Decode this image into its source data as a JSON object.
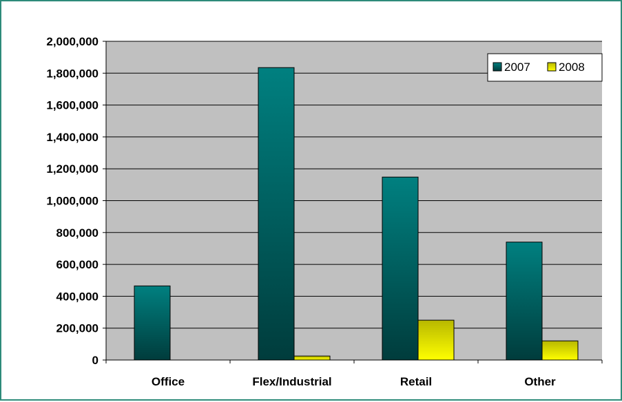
{
  "chart_data": {
    "type": "bar",
    "categories": [
      "Office",
      "Flex/Industrial",
      "Retail",
      "Other"
    ],
    "series": [
      {
        "name": "2007",
        "values": [
          465000,
          1835000,
          1148000,
          740000
        ]
      },
      {
        "name": "2008",
        "values": [
          0,
          25000,
          250000,
          120000
        ]
      }
    ],
    "ylim": [
      0,
      2000000
    ],
    "yticks": [
      0,
      200000,
      400000,
      600000,
      800000,
      1000000,
      1200000,
      1400000,
      1600000,
      1800000,
      2000000
    ],
    "ytick_labels": [
      "0",
      "200,000",
      "400,000",
      "600,000",
      "800,000",
      "1,000,000",
      "1,200,000",
      "1,400,000",
      "1,600,000",
      "1,800,000",
      "2,000,000"
    ],
    "grid": true,
    "legend": "top-right",
    "colors": {
      "series_2007_top": "#008080",
      "series_2007_bottom": "#003c3c",
      "series_2008_top": "#b8b800",
      "series_2008_bottom": "#ffff00",
      "plot_background": "#c0c0c0",
      "frame_border": "#2e8b7a"
    }
  }
}
